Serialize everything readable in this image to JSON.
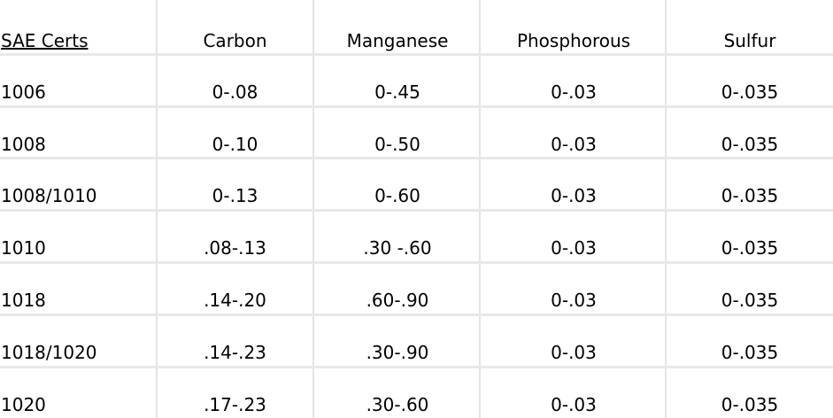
{
  "table": {
    "headers": [
      "SAE Certs",
      "Carbon",
      "Manganese",
      "Phosphorous",
      "Sulfur"
    ],
    "rows": [
      [
        "1006",
        "0-.08",
        "0-.45",
        "0-.03",
        "0-.035"
      ],
      [
        "1008",
        "0-.10",
        "0-.50",
        "0-.03",
        "0-.035"
      ],
      [
        "1008/1010",
        "0-.13",
        "0-.60",
        "0-.03",
        "0-.035"
      ],
      [
        "1010",
        ".08-.13",
        ".30 -.60",
        "0-.03",
        "0-.035"
      ],
      [
        "1018",
        ".14-.20",
        ".60-.90",
        "0-.03",
        "0-.035"
      ],
      [
        "1018/1020",
        ".14-.23",
        ".30-.90",
        "0-.03",
        "0-.035"
      ],
      [
        "1020",
        ".17-.23",
        ".30-.60",
        "0-.03",
        "0-.035"
      ]
    ]
  },
  "colors": {
    "background": "#ffffff",
    "text": "#000000",
    "gridline": "#e4e4e4"
  }
}
